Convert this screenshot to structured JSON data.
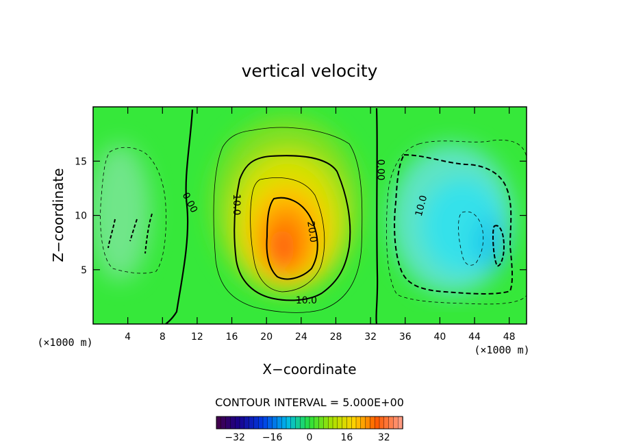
{
  "chart_data": {
    "type": "heatmap",
    "title": "vertical velocity",
    "xlabel": "X−coordinate",
    "ylabel": "Z−coordinate",
    "x_unit": "(×1000 m)",
    "y_unit": "(×1000 m)",
    "xlim": [
      0,
      50
    ],
    "ylim": [
      0,
      20
    ],
    "x_ticks": [
      4,
      8,
      12,
      16,
      20,
      24,
      28,
      32,
      36,
      40,
      44,
      48
    ],
    "y_ticks": [
      5,
      10,
      15
    ],
    "contour_interval_text": "CONTOUR INTERVAL = 5.000E+00",
    "contour_labels": [
      {
        "text": "0.00",
        "x": 11.2,
        "y": 11.2,
        "rot": 62
      },
      {
        "text": "10.0",
        "x": 16.6,
        "y": 11.0,
        "rot": 90
      },
      {
        "text": "20.0",
        "x": 25.3,
        "y": 8.5,
        "rot": 82
      },
      {
        "text": "10.0",
        "x": 24.6,
        "y": 2.2,
        "rot": 0
      },
      {
        "text": "0.00",
        "x": 33.2,
        "y": 14.2,
        "rot": 90
      },
      {
        "text": "10.0",
        "x": 37.8,
        "y": 10.9,
        "rot": -75
      }
    ],
    "colorbar": {
      "range": [
        -40,
        40
      ],
      "ticks": [
        -32,
        -16,
        0,
        16,
        32
      ],
      "tick_labels": [
        "−32",
        "−16",
        "0",
        "16",
        "32"
      ]
    },
    "field_features": [
      {
        "sign": "positive",
        "x": 21.8,
        "y": 7.2,
        "peak": 30
      },
      {
        "sign": "negative",
        "x": 46.2,
        "y": 7.6,
        "peak": -22
      },
      {
        "sign": "negative",
        "x": 5.2,
        "y": 8.0,
        "peak": -13
      }
    ]
  }
}
